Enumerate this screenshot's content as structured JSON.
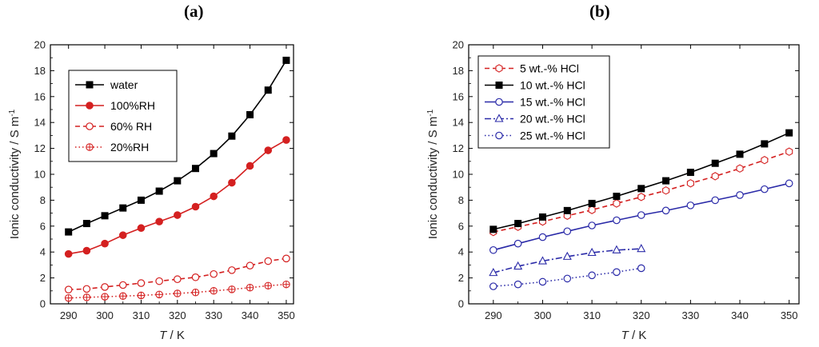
{
  "chart_data": [
    {
      "panel": "(a)",
      "type": "line",
      "title": "",
      "xlabel_var": "T",
      "xlabel_unit": " / K",
      "ylabel": "Ionic conductivity / S m",
      "ylabel_sup": "-1",
      "xlim": [
        285,
        352
      ],
      "ylim": [
        0,
        20
      ],
      "xticks": [
        290,
        300,
        310,
        320,
        330,
        340,
        350
      ],
      "yticks": [
        0,
        2,
        4,
        6,
        8,
        10,
        12,
        14,
        16,
        18,
        20
      ],
      "legend_position": "upper-left",
      "series": [
        {
          "name": "water",
          "color": "#000000",
          "dash": "solid",
          "marker": "square",
          "filled": true,
          "x": [
            290,
            295,
            300,
            305,
            310,
            315,
            320,
            325,
            330,
            335,
            340,
            345,
            350
          ],
          "y": [
            5.55,
            6.2,
            6.8,
            7.4,
            8.0,
            8.7,
            9.5,
            10.45,
            11.6,
            12.95,
            14.6,
            16.5,
            18.8
          ]
        },
        {
          "name": "100%RH",
          "color": "#d42020",
          "dash": "solid",
          "marker": "circle",
          "filled": true,
          "x": [
            290,
            295,
            300,
            305,
            310,
            315,
            320,
            325,
            330,
            335,
            340,
            345,
            350
          ],
          "y": [
            3.85,
            4.1,
            4.65,
            5.3,
            5.85,
            6.35,
            6.85,
            7.5,
            8.3,
            9.35,
            10.65,
            11.85,
            12.65
          ]
        },
        {
          "name": "60% RH",
          "color": "#d42020",
          "dash": "dashed",
          "marker": "circle",
          "filled": false,
          "x": [
            290,
            295,
            300,
            305,
            310,
            315,
            320,
            325,
            330,
            335,
            340,
            345,
            350
          ],
          "y": [
            1.1,
            1.15,
            1.3,
            1.45,
            1.6,
            1.75,
            1.9,
            2.05,
            2.3,
            2.6,
            2.95,
            3.3,
            3.5
          ]
        },
        {
          "name": "20%RH",
          "color": "#d42020",
          "dash": "dotted",
          "marker": "crosscircle",
          "filled": false,
          "x": [
            290,
            295,
            300,
            305,
            310,
            315,
            320,
            325,
            330,
            335,
            340,
            345,
            350
          ],
          "y": [
            0.45,
            0.5,
            0.55,
            0.6,
            0.65,
            0.72,
            0.8,
            0.88,
            1.0,
            1.12,
            1.25,
            1.4,
            1.5
          ]
        }
      ]
    },
    {
      "panel": "(b)",
      "type": "line",
      "title": "",
      "xlabel_var": "T",
      "xlabel_unit": " / K",
      "ylabel": "Ionic conductivity / S m",
      "ylabel_sup": "-1",
      "xlim": [
        285,
        352
      ],
      "ylim": [
        0,
        20
      ],
      "xticks": [
        290,
        300,
        310,
        320,
        330,
        340,
        350
      ],
      "yticks": [
        0,
        2,
        4,
        6,
        8,
        10,
        12,
        14,
        16,
        18,
        20
      ],
      "legend_position": "upper-left",
      "series": [
        {
          "name": "5 wt.-% HCl",
          "color": "#d42020",
          "dash": "dashed",
          "marker": "hexagon",
          "filled": false,
          "x": [
            290,
            295,
            300,
            305,
            310,
            315,
            320,
            325,
            330,
            335,
            340,
            345,
            350
          ],
          "y": [
            5.55,
            5.95,
            6.35,
            6.8,
            7.25,
            7.75,
            8.25,
            8.75,
            9.3,
            9.85,
            10.45,
            11.1,
            11.75
          ]
        },
        {
          "name": "10 wt.-% HCl",
          "color": "#000000",
          "dash": "solid",
          "marker": "square",
          "filled": true,
          "x": [
            290,
            295,
            300,
            305,
            310,
            315,
            320,
            325,
            330,
            335,
            340,
            345,
            350
          ],
          "y": [
            5.75,
            6.2,
            6.7,
            7.2,
            7.75,
            8.3,
            8.9,
            9.5,
            10.15,
            10.85,
            11.55,
            12.35,
            13.2
          ]
        },
        {
          "name": "15 wt.-% HCl",
          "color": "#2a2aa8",
          "dash": "solid",
          "marker": "circle",
          "filled": false,
          "x": [
            290,
            295,
            300,
            305,
            310,
            315,
            320,
            325,
            330,
            335,
            340,
            345,
            350
          ],
          "y": [
            4.15,
            4.65,
            5.15,
            5.6,
            6.05,
            6.45,
            6.85,
            7.2,
            7.6,
            8.0,
            8.4,
            8.85,
            9.3
          ]
        },
        {
          "name": "20 wt.-% HCl",
          "color": "#2a2aa8",
          "dash": "dashdot",
          "marker": "triangle",
          "filled": false,
          "x": [
            290,
            295,
            300,
            305,
            310,
            315,
            320
          ],
          "y": [
            2.4,
            2.9,
            3.3,
            3.65,
            3.95,
            4.15,
            4.25
          ]
        },
        {
          "name": "25 wt.-% HCl",
          "color": "#2a2aa8",
          "dash": "dotted",
          "marker": "circle",
          "filled": false,
          "x": [
            290,
            295,
            300,
            305,
            310,
            315,
            320
          ],
          "y": [
            1.35,
            1.5,
            1.7,
            1.95,
            2.2,
            2.45,
            2.75
          ]
        }
      ]
    }
  ]
}
